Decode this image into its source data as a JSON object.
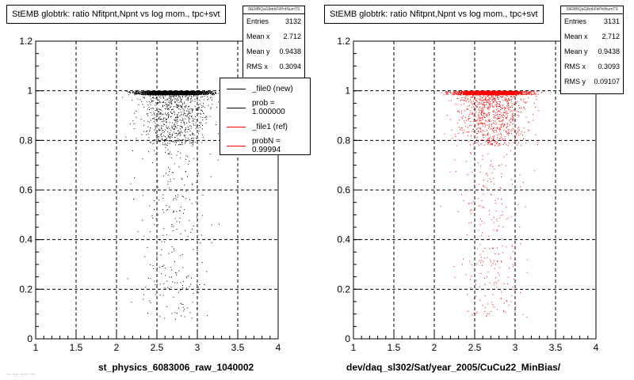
{
  "colors": {
    "ref": "#000000",
    "new": "#ff0000",
    "grid": "#000000"
  },
  "footer_text": "...  ....  .....  ....",
  "chart_data": [
    {
      "type": "scatter",
      "title": "StEMB globtrk: ratio Nfitpnt,Npnt vs log mom., tpc+svt",
      "xlabel": "st_physics_6083006_raw_1040002",
      "ylabel": "",
      "xlim": [
        1,
        4
      ],
      "ylim": [
        0,
        1.2
      ],
      "xticks": [
        "1",
        "1.5",
        "2",
        "2.5",
        "3",
        "3.5",
        "4"
      ],
      "yticks": [
        "0",
        "0.2",
        "0.4",
        "0.6",
        "0.8",
        "1",
        "1.2"
      ],
      "grid": true,
      "color": "#000000",
      "stats": {
        "header": "StEMBQaGlbtrkFitPntNumTS",
        "rows": [
          {
            "label": "Entries",
            "value": "3132"
          },
          {
            "label": "Mean x",
            "value": "2.712"
          },
          {
            "label": "Mean y",
            "value": "0.9438"
          },
          {
            "label": "RMS x",
            "value": "0.3094"
          }
        ]
      },
      "legend": [
        {
          "label": "_file0 (new)",
          "color": "#000000"
        },
        {
          "label": "prob = 1.000000",
          "color": "#000000"
        },
        {
          "label": "_file1 (ref)",
          "color": "#ff0000"
        },
        {
          "label": "probN = 0.99994",
          "color": "#ff0000"
        }
      ]
    },
    {
      "type": "scatter",
      "title": "StEMB globtrk: ratio Nfitpnt,Npnt vs log mom., tpc+svt",
      "xlabel": "dev/daq_sl302/Sat/year_2005/CuCu22_MinBias/",
      "ylabel": "",
      "xlim": [
        1,
        4
      ],
      "ylim": [
        0,
        1.2
      ],
      "xticks": [
        "1",
        "1.5",
        "2",
        "2.5",
        "3",
        "3.5",
        "4"
      ],
      "yticks": [
        "0",
        "0.2",
        "0.4",
        "0.6",
        "0.8",
        "1",
        "1.2"
      ],
      "grid": true,
      "color": "#ff0000",
      "stats": {
        "header": "StEMBQaGlbtrkFitPntNumTS",
        "rows": [
          {
            "label": "Entries",
            "value": "3131"
          },
          {
            "label": "Mean x",
            "value": "2.712"
          },
          {
            "label": "Mean y",
            "value": "0.9438"
          },
          {
            "label": "RMS x",
            "value": "0.3093"
          },
          {
            "label": "RMS y",
            "value": "0.09107"
          }
        ]
      }
    }
  ]
}
